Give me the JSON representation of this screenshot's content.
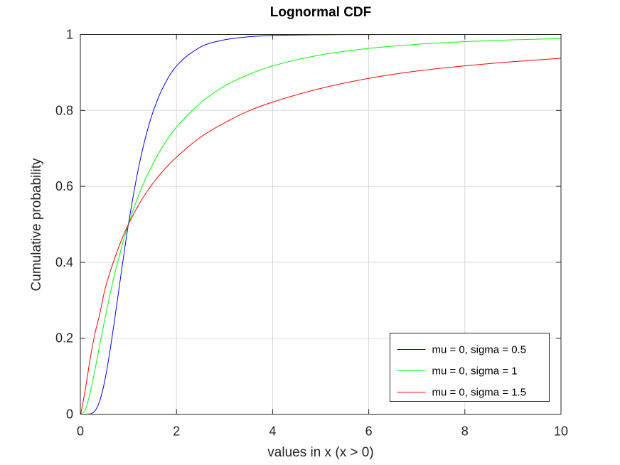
{
  "chart_data": {
    "type": "line",
    "title": "Lognormal CDF",
    "xlabel": "values in x (x > 0)",
    "ylabel": "Cumulative probability",
    "xlim": [
      0,
      10
    ],
    "ylim": [
      0,
      1
    ],
    "x_ticks": [
      0,
      2,
      4,
      6,
      8,
      10
    ],
    "y_ticks": [
      0,
      0.2,
      0.4,
      0.6,
      0.8,
      1
    ],
    "x_tick_labels": [
      "0",
      "2",
      "4",
      "6",
      "8",
      "10"
    ],
    "y_tick_labels": [
      "0",
      "0.2",
      "0.4",
      "0.6",
      "0.8",
      "1"
    ],
    "grid": true,
    "legend_position": "bottom-right",
    "x": [
      0.01,
      0.1,
      0.2,
      0.3,
      0.4,
      0.5,
      0.6,
      0.7,
      0.8,
      0.9,
      1.0,
      1.2,
      1.4,
      1.6,
      1.8,
      2.0,
      2.5,
      3.0,
      3.5,
      4.0,
      5.0,
      6.0,
      7.0,
      8.0,
      9.0,
      10.0
    ],
    "series": [
      {
        "name": "mu = 0, sigma = 0.5",
        "color": "#0000ff",
        "mu": 0,
        "sigma": 0.5,
        "values": [
          0.0,
          0.0,
          0.0006,
          0.0081,
          0.0335,
          0.0829,
          0.1537,
          0.2376,
          0.3265,
          0.4163,
          0.5,
          0.642,
          0.75,
          0.8265,
          0.88,
          0.917,
          0.9668,
          0.9859,
          0.9938,
          0.9972,
          0.9994,
          0.9998,
          1.0,
          1.0,
          1.0,
          1.0
        ]
      },
      {
        "name": "mu = 0, sigma = 1",
        "color": "#00ff00",
        "mu": 0,
        "sigma": 1,
        "values": [
          0.0,
          0.0107,
          0.0536,
          0.1141,
          0.18,
          0.2441,
          0.3049,
          0.3622,
          0.4115,
          0.4587,
          0.5,
          0.5724,
          0.6315,
          0.6807,
          0.7218,
          0.7561,
          0.8196,
          0.8643,
          0.8944,
          0.9172,
          0.9462,
          0.9634,
          0.9741,
          0.9812,
          0.9859,
          0.9893
        ]
      },
      {
        "name": "mu = 0, sigma = 1.5",
        "color": "#ff0000",
        "mu": 0,
        "sigma": 1.5,
        "values": [
          0.0011,
          0.0625,
          0.1423,
          0.2103,
          0.2616,
          0.3222,
          0.3669,
          0.4052,
          0.4407,
          0.4721,
          0.5,
          0.5485,
          0.5885,
          0.6227,
          0.6517,
          0.6769,
          0.7296,
          0.7674,
          0.7985,
          0.8219,
          0.858,
          0.8844,
          0.9037,
          0.9174,
          0.9284,
          0.9374
        ]
      }
    ]
  }
}
